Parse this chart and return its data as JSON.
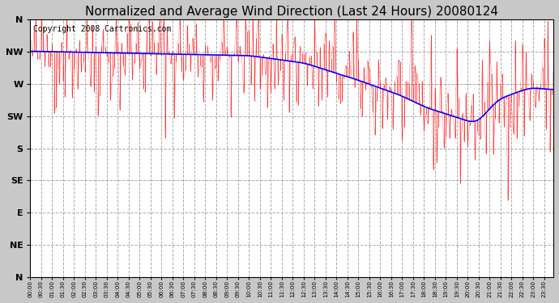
{
  "title": "Normalized and Average Wind Direction (Last 24 Hours) 20080124",
  "copyright": "Copyright 2008 Cartronics.com",
  "ytick_labels": [
    "N",
    "NW",
    "W",
    "SW",
    "S",
    "SE",
    "E",
    "NE",
    "N"
  ],
  "ytick_values": [
    360,
    315,
    270,
    225,
    180,
    135,
    90,
    45,
    0
  ],
  "ylim": [
    0,
    360
  ],
  "bg_color": "#c8c8c8",
  "plot_bg_color": "#ffffff",
  "grid_color": "#aaaaaa",
  "red_color": "#ff0000",
  "blue_color": "#0000ff",
  "title_fontsize": 11,
  "copyright_fontsize": 7,
  "n_points": 288,
  "seed": 42
}
